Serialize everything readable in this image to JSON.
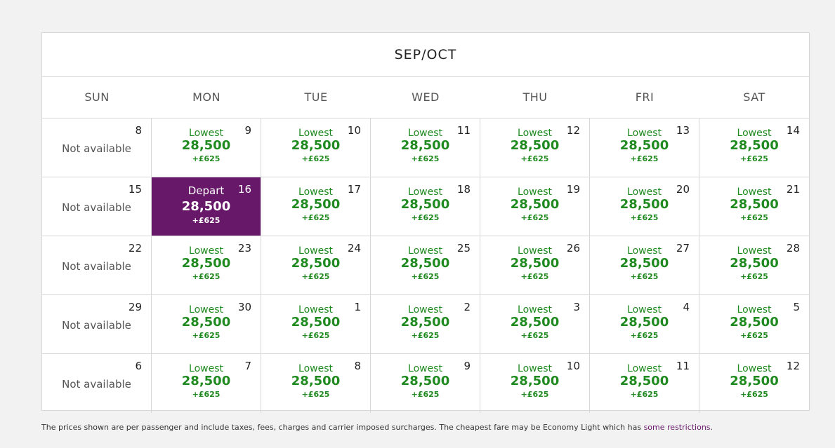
{
  "calendar": {
    "title": "SEP/OCT",
    "weekdays": [
      "SUN",
      "MON",
      "TUE",
      "WED",
      "THU",
      "FRI",
      "SAT"
    ],
    "unavailable_label": "Not available",
    "lowest_label": "Lowest",
    "selected_label": "Depart",
    "weeks": [
      [
        {
          "day": "8",
          "status": "unavailable"
        },
        {
          "day": "9",
          "status": "lowest",
          "price": "28,500",
          "tax": "+£625"
        },
        {
          "day": "10",
          "status": "lowest",
          "price": "28,500",
          "tax": "+£625"
        },
        {
          "day": "11",
          "status": "lowest",
          "price": "28,500",
          "tax": "+£625"
        },
        {
          "day": "12",
          "status": "lowest",
          "price": "28,500",
          "tax": "+£625"
        },
        {
          "day": "13",
          "status": "lowest",
          "price": "28,500",
          "tax": "+£625"
        },
        {
          "day": "14",
          "status": "lowest",
          "price": "28,500",
          "tax": "+£625"
        }
      ],
      [
        {
          "day": "15",
          "status": "unavailable"
        },
        {
          "day": "16",
          "status": "selected",
          "price": "28,500",
          "tax": "+£625"
        },
        {
          "day": "17",
          "status": "lowest",
          "price": "28,500",
          "tax": "+£625"
        },
        {
          "day": "18",
          "status": "lowest",
          "price": "28,500",
          "tax": "+£625"
        },
        {
          "day": "19",
          "status": "lowest",
          "price": "28,500",
          "tax": "+£625"
        },
        {
          "day": "20",
          "status": "lowest",
          "price": "28,500",
          "tax": "+£625"
        },
        {
          "day": "21",
          "status": "lowest",
          "price": "28,500",
          "tax": "+£625"
        }
      ],
      [
        {
          "day": "22",
          "status": "unavailable"
        },
        {
          "day": "23",
          "status": "lowest",
          "price": "28,500",
          "tax": "+£625"
        },
        {
          "day": "24",
          "status": "lowest",
          "price": "28,500",
          "tax": "+£625"
        },
        {
          "day": "25",
          "status": "lowest",
          "price": "28,500",
          "tax": "+£625"
        },
        {
          "day": "26",
          "status": "lowest",
          "price": "28,500",
          "tax": "+£625"
        },
        {
          "day": "27",
          "status": "lowest",
          "price": "28,500",
          "tax": "+£625"
        },
        {
          "day": "28",
          "status": "lowest",
          "price": "28,500",
          "tax": "+£625"
        }
      ],
      [
        {
          "day": "29",
          "status": "unavailable"
        },
        {
          "day": "30",
          "status": "lowest",
          "price": "28,500",
          "tax": "+£625"
        },
        {
          "day": "1",
          "status": "lowest",
          "price": "28,500",
          "tax": "+£625"
        },
        {
          "day": "2",
          "status": "lowest",
          "price": "28,500",
          "tax": "+£625"
        },
        {
          "day": "3",
          "status": "lowest",
          "price": "28,500",
          "tax": "+£625"
        },
        {
          "day": "4",
          "status": "lowest",
          "price": "28,500",
          "tax": "+£625"
        },
        {
          "day": "5",
          "status": "lowest",
          "price": "28,500",
          "tax": "+£625"
        }
      ],
      [
        {
          "day": "6",
          "status": "unavailable"
        },
        {
          "day": "7",
          "status": "lowest",
          "price": "28,500",
          "tax": "+£625"
        },
        {
          "day": "8",
          "status": "lowest",
          "price": "28,500",
          "tax": "+£625"
        },
        {
          "day": "9",
          "status": "lowest",
          "price": "28,500",
          "tax": "+£625"
        },
        {
          "day": "10",
          "status": "lowest",
          "price": "28,500",
          "tax": "+£625"
        },
        {
          "day": "11",
          "status": "lowest",
          "price": "28,500",
          "tax": "+£625"
        },
        {
          "day": "12",
          "status": "lowest",
          "price": "28,500",
          "tax": "+£625"
        }
      ]
    ]
  },
  "footnote": {
    "text": "The prices shown are per passenger and include taxes, fees, charges and carrier imposed surcharges. The cheapest fare may be Economy Light which has ",
    "link": "some restrictions",
    "end": "."
  },
  "colors": {
    "price_green": "#1f8a1f",
    "selected_bg": "#671869",
    "border": "#d6d6d6",
    "link": "#671869"
  }
}
